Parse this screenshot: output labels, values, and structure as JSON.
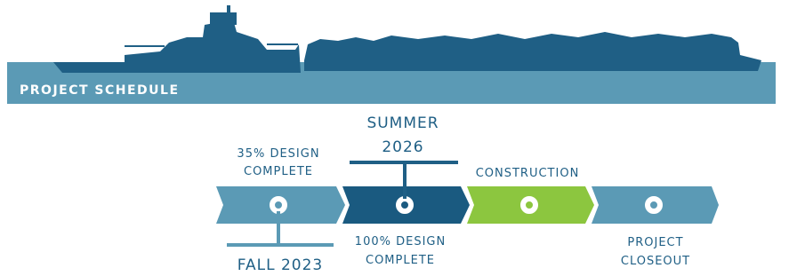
{
  "header": {
    "title": "PROJECT SCHEDULE"
  },
  "steps": [
    {
      "label": [
        "35% DESIGN",
        "COMPLETE"
      ]
    },
    {
      "label": [
        "100% DESIGN",
        "COMPLETE"
      ]
    },
    {
      "label": [
        "CONSTRUCTION"
      ]
    },
    {
      "label": [
        "PROJECT",
        "CLOSEOUT"
      ]
    }
  ],
  "milestones": [
    {
      "label": [
        "SUMMER",
        "2026"
      ]
    },
    {
      "label": [
        "FALL 2023"
      ]
    }
  ]
}
